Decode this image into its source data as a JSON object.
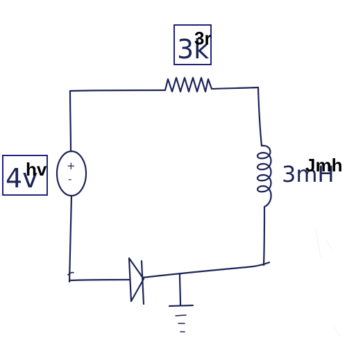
{
  "resistor": {
    "handwritten_label": "3k",
    "overlay_label": "3r"
  },
  "source": {
    "handwritten_label": "4v",
    "overlay_label": "hv",
    "plus_sign": "+",
    "minus_sign": "-"
  },
  "inductor": {
    "handwritten_label": "3mH",
    "overlay_label": "Jmh"
  },
  "colors": {
    "ink": "#1c2357",
    "box": "#20217a",
    "overlay_text": "#000000"
  }
}
